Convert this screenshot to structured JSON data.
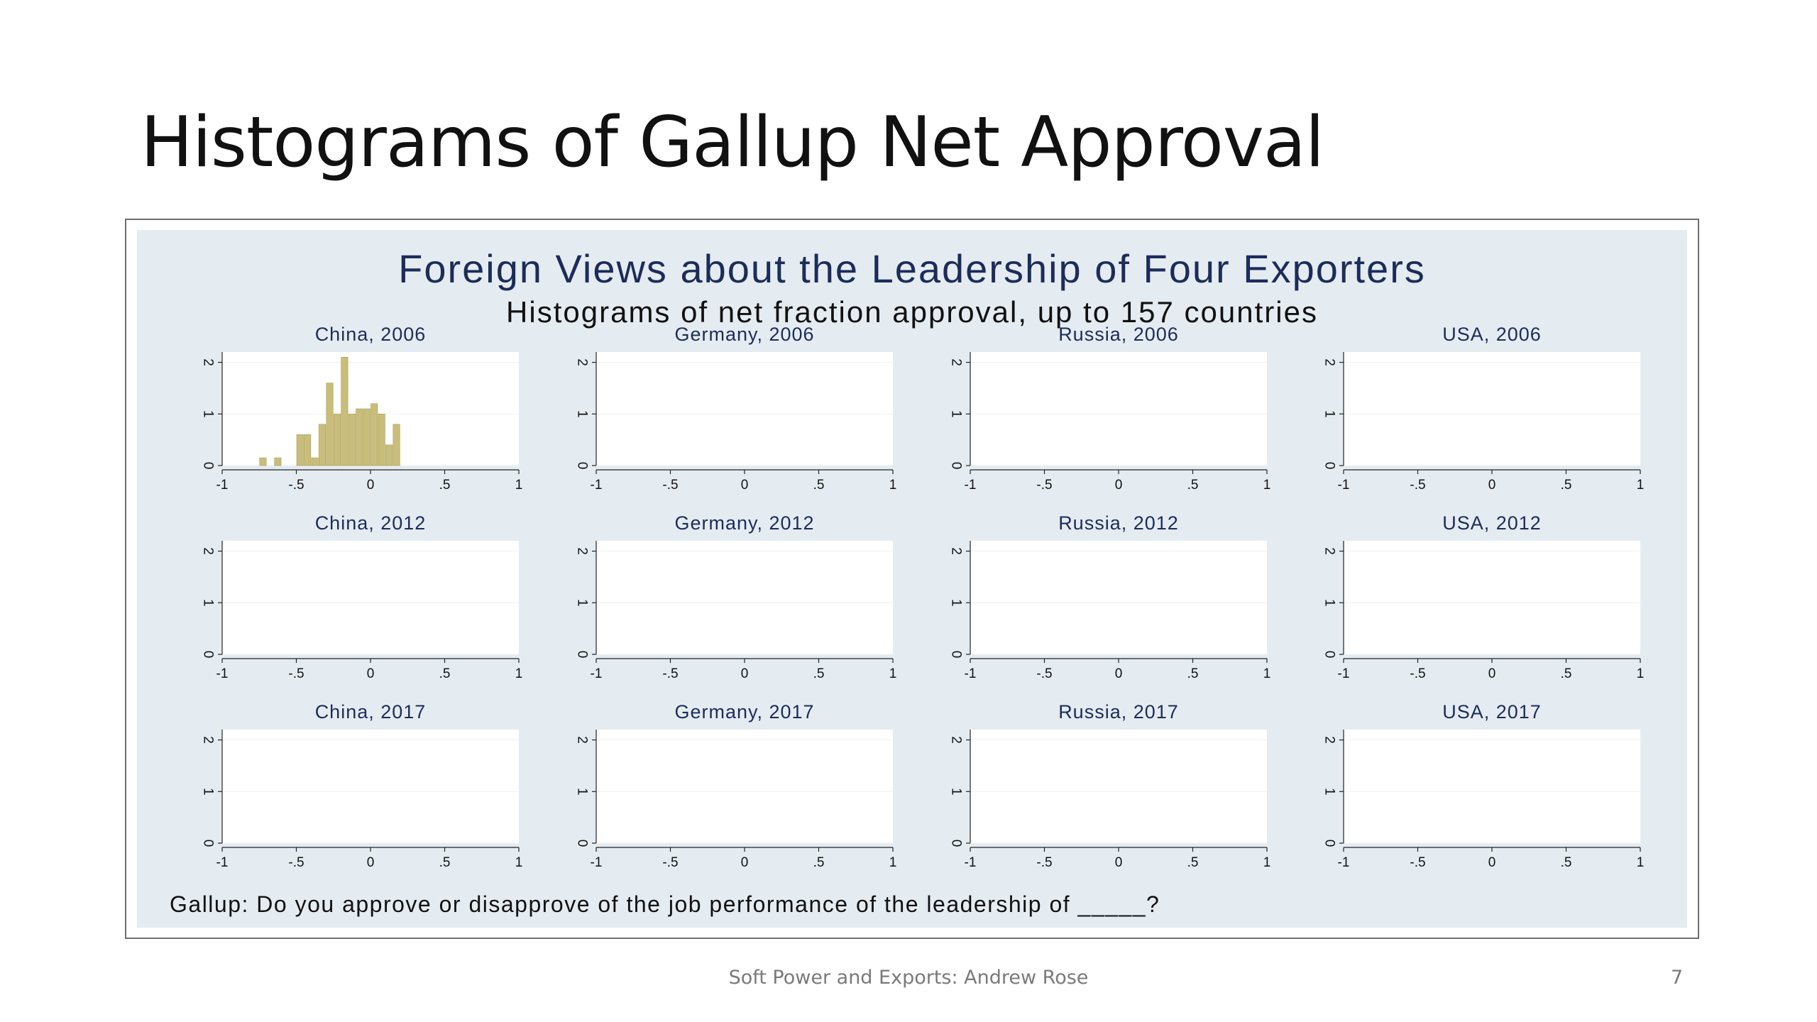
{
  "slide": {
    "title": "Histograms of Gallup Net Approval",
    "footer": "Soft Power and Exports: Andrew Rose",
    "page_number": "7"
  },
  "colors": {
    "bar_fill": "#c9bd7a",
    "bar_edge": "#a89d5a",
    "plot_background": "#ffffff",
    "figure_background": "#e5ecf1",
    "title_color": "#1c2c5a"
  },
  "chart_data": {
    "type": "bar",
    "title": "Foreign Views about the Leadership of Four Exporters",
    "subtitle": "Histograms of net fraction approval, up to 157 countries",
    "note": "Gallup: Do you approve or disapprove of the job performance of the leadership of _____?",
    "layout": "3 rows (2006, 2012, 2017) x 4 columns (China, Germany, Russia, USA)",
    "bin_start": -1,
    "bin_width": 0.05,
    "xlim": [
      -1,
      1
    ],
    "ylim": [
      0,
      2.2
    ],
    "x_ticks": [
      -1,
      -0.5,
      0,
      0.5,
      1
    ],
    "x_tick_labels": [
      "-1",
      "-.5",
      "0",
      ".5",
      "1"
    ],
    "y_ticks": [
      0,
      1,
      2
    ],
    "y_tick_labels": [
      "0",
      "1",
      "2"
    ],
    "y_tick_labels_rotated": true,
    "grid": true,
    "panels": [
      {
        "title": "China, 2006",
        "density": [
          0,
          0,
          0,
          0,
          0,
          0.15,
          0,
          0.15,
          0,
          0,
          0.6,
          0.6,
          0.15,
          0.8,
          1.6,
          1.0,
          2.1,
          1.0,
          1.1,
          1.1,
          1.2,
          1.0,
          0.4,
          0.8,
          0,
          0,
          0,
          0,
          0,
          0,
          0,
          0,
          0,
          0,
          0,
          0,
          0,
          0,
          0,
          0
        ]
      },
      {
        "title": "Germany, 2006",
        "density": [
          0,
          0,
          0,
          0,
          0,
          0,
          0,
          0,
          0,
          0,
          0,
          0,
          0,
          0,
          0,
          0,
          0,
          0,
          0,
          0,
          0,
          0,
          0,
          0,
          0,
          0,
          0,
          0,
          0,
          0,
          0,
          0,
          0,
          0,
          0,
          0,
          0,
          0,
          0,
          0
        ]
      },
      {
        "title": "Russia, 2006",
        "density": [
          0,
          0,
          0,
          0,
          0,
          0,
          0,
          0,
          0,
          0,
          0,
          0,
          0,
          0,
          0,
          0,
          0,
          0,
          0,
          0,
          0,
          0,
          0,
          0,
          0,
          0,
          0,
          0,
          0,
          0,
          0,
          0,
          0,
          0,
          0,
          0,
          0,
          0,
          0,
          0
        ]
      },
      {
        "title": "USA, 2006",
        "density": [
          0,
          0,
          0,
          0,
          0,
          0,
          0,
          0,
          0,
          0,
          0,
          0,
          0,
          0,
          0,
          0,
          0,
          0,
          0,
          0,
          0,
          0,
          0,
          0,
          0,
          0,
          0,
          0,
          0,
          0,
          0,
          0,
          0,
          0,
          0,
          0,
          0,
          0,
          0,
          0
        ]
      },
      {
        "title": "China, 2012",
        "density": [
          0,
          0,
          0,
          0,
          0,
          0,
          0,
          0,
          0,
          0,
          0,
          0,
          0,
          0,
          0,
          0,
          0,
          0,
          0,
          0,
          0,
          0,
          0,
          0,
          0,
          0,
          0,
          0,
          0,
          0,
          0,
          0,
          0,
          0,
          0,
          0,
          0,
          0,
          0,
          0
        ]
      },
      {
        "title": "Germany, 2012",
        "density": [
          0,
          0,
          0,
          0,
          0,
          0,
          0,
          0,
          0,
          0,
          0,
          0,
          0,
          0,
          0,
          0,
          0,
          0,
          0,
          0,
          0,
          0,
          0,
          0,
          0,
          0,
          0,
          0,
          0,
          0,
          0,
          0,
          0,
          0,
          0,
          0,
          0,
          0,
          0,
          0
        ]
      },
      {
        "title": "Russia, 2012",
        "density": [
          0,
          0,
          0,
          0,
          0,
          0,
          0,
          0,
          0,
          0,
          0,
          0,
          0,
          0,
          0,
          0,
          0,
          0,
          0,
          0,
          0,
          0,
          0,
          0,
          0,
          0,
          0,
          0,
          0,
          0,
          0,
          0,
          0,
          0,
          0,
          0,
          0,
          0,
          0,
          0
        ]
      },
      {
        "title": "USA, 2012",
        "density": [
          0,
          0,
          0,
          0,
          0,
          0,
          0,
          0,
          0,
          0,
          0,
          0,
          0,
          0,
          0,
          0,
          0,
          0,
          0,
          0,
          0,
          0,
          0,
          0,
          0,
          0,
          0,
          0,
          0,
          0,
          0,
          0,
          0,
          0,
          0,
          0,
          0,
          0,
          0,
          0
        ]
      },
      {
        "title": "China, 2017",
        "density": [
          0,
          0,
          0,
          0,
          0,
          0,
          0,
          0,
          0,
          0,
          0,
          0,
          0,
          0,
          0,
          0,
          0,
          0,
          0,
          0,
          0,
          0,
          0,
          0,
          0,
          0,
          0,
          0,
          0,
          0,
          0,
          0,
          0,
          0,
          0,
          0,
          0,
          0,
          0,
          0
        ]
      },
      {
        "title": "Germany, 2017",
        "density": [
          0,
          0,
          0,
          0,
          0,
          0,
          0,
          0,
          0,
          0,
          0,
          0,
          0,
          0,
          0,
          0,
          0,
          0,
          0,
          0,
          0,
          0,
          0,
          0,
          0,
          0,
          0,
          0,
          0,
          0,
          0,
          0,
          0,
          0,
          0,
          0,
          0,
          0,
          0,
          0
        ]
      },
      {
        "title": "Russia, 2017",
        "density": [
          0,
          0,
          0,
          0,
          0,
          0,
          0,
          0,
          0,
          0,
          0,
          0,
          0,
          0,
          0,
          0,
          0,
          0,
          0,
          0,
          0,
          0,
          0,
          0,
          0,
          0,
          0,
          0,
          0,
          0,
          0,
          0,
          0,
          0,
          0,
          0,
          0,
          0,
          0,
          0
        ]
      },
      {
        "title": "USA, 2017",
        "density": [
          0,
          0,
          0,
          0,
          0,
          0,
          0,
          0,
          0,
          0,
          0,
          0,
          0,
          0,
          0,
          0,
          0,
          0,
          0,
          0,
          0,
          0,
          0,
          0,
          0,
          0,
          0,
          0,
          0,
          0,
          0,
          0,
          0,
          0,
          0,
          0,
          0,
          0,
          0,
          0
        ]
      }
    ]
  }
}
